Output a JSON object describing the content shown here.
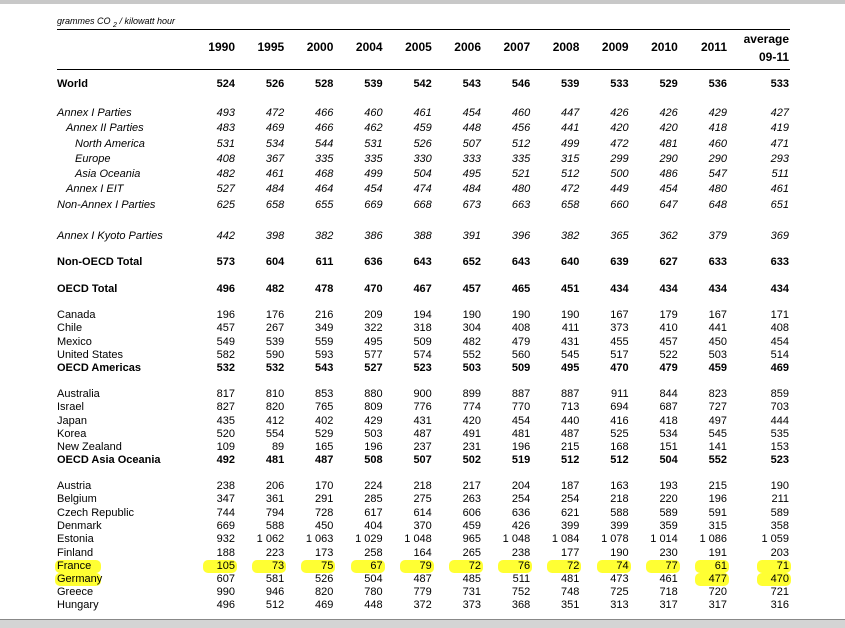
{
  "table": {
    "units": {
      "main": "grammes CO",
      "sub": "2",
      "rest": " / kilowatt hour"
    },
    "columns": [
      "1990",
      "1995",
      "2000",
      "2004",
      "2005",
      "2006",
      "2007",
      "2008",
      "2009",
      "2010",
      "2011",
      {
        "line1": "average",
        "line2": "09-11"
      }
    ],
    "rows": [
      {
        "label": "World",
        "values": [
          524,
          526,
          528,
          539,
          542,
          543,
          546,
          539,
          533,
          529,
          536,
          533
        ]
      },
      {
        "label": "Annex I Parties",
        "values": [
          493,
          472,
          466,
          460,
          461,
          454,
          460,
          447,
          426,
          426,
          429,
          427
        ]
      },
      {
        "label": "Annex II Parties",
        "values": [
          483,
          469,
          466,
          462,
          459,
          448,
          456,
          441,
          420,
          420,
          418,
          419
        ]
      },
      {
        "label": "North America",
        "values": [
          531,
          534,
          544,
          531,
          526,
          507,
          512,
          499,
          472,
          481,
          460,
          471
        ]
      },
      {
        "label": "Europe",
        "values": [
          408,
          367,
          335,
          335,
          330,
          333,
          335,
          315,
          299,
          290,
          290,
          293
        ]
      },
      {
        "label": "Asia Oceania",
        "values": [
          482,
          461,
          468,
          499,
          504,
          495,
          521,
          512,
          500,
          486,
          547,
          511
        ]
      },
      {
        "label": "Annex I EIT",
        "values": [
          527,
          484,
          464,
          454,
          474,
          484,
          480,
          472,
          449,
          454,
          480,
          461
        ]
      },
      {
        "label": "Non-Annex I Parties",
        "values": [
          625,
          658,
          655,
          669,
          668,
          673,
          663,
          658,
          660,
          647,
          648,
          651
        ]
      },
      {
        "label": "Annex I Kyoto Parties",
        "values": [
          442,
          398,
          382,
          386,
          388,
          391,
          396,
          382,
          365,
          362,
          379,
          369
        ]
      },
      {
        "label": "Non-OECD Total",
        "values": [
          573,
          604,
          611,
          636,
          643,
          652,
          643,
          640,
          639,
          627,
          633,
          633
        ]
      },
      {
        "label": "OECD Total",
        "values": [
          496,
          482,
          478,
          470,
          467,
          457,
          465,
          451,
          434,
          434,
          434,
          434
        ]
      },
      {
        "label": "Canada",
        "values": [
          196,
          176,
          216,
          209,
          194,
          190,
          190,
          190,
          167,
          179,
          167,
          171
        ]
      },
      {
        "label": "Chile",
        "values": [
          457,
          267,
          349,
          322,
          318,
          304,
          408,
          411,
          373,
          410,
          441,
          408
        ]
      },
      {
        "label": "Mexico",
        "values": [
          549,
          539,
          559,
          495,
          509,
          482,
          479,
          431,
          455,
          457,
          450,
          454
        ]
      },
      {
        "label": "United States",
        "values": [
          582,
          590,
          593,
          577,
          574,
          552,
          560,
          545,
          517,
          522,
          503,
          514
        ]
      },
      {
        "label": "OECD Americas",
        "values": [
          532,
          532,
          543,
          527,
          523,
          503,
          509,
          495,
          470,
          479,
          459,
          469
        ]
      },
      {
        "label": "Australia",
        "values": [
          817,
          810,
          853,
          880,
          900,
          899,
          887,
          887,
          911,
          844,
          823,
          859
        ]
      },
      {
        "label": "Israel",
        "values": [
          827,
          820,
          765,
          809,
          776,
          774,
          770,
          713,
          694,
          687,
          727,
          703
        ]
      },
      {
        "label": "Japan",
        "values": [
          435,
          412,
          402,
          429,
          431,
          420,
          454,
          440,
          416,
          418,
          497,
          444
        ]
      },
      {
        "label": "Korea",
        "values": [
          520,
          554,
          529,
          503,
          487,
          491,
          481,
          487,
          525,
          534,
          545,
          535
        ]
      },
      {
        "label": "New Zealand",
        "values": [
          109,
          89,
          165,
          196,
          237,
          231,
          196,
          215,
          168,
          151,
          141,
          153
        ]
      },
      {
        "label": "OECD Asia Oceania",
        "values": [
          492,
          481,
          487,
          508,
          507,
          502,
          519,
          512,
          512,
          504,
          552,
          523
        ]
      },
      {
        "label": "Austria",
        "values": [
          238,
          206,
          170,
          224,
          218,
          217,
          204,
          187,
          163,
          193,
          215,
          190
        ]
      },
      {
        "label": "Belgium",
        "values": [
          347,
          361,
          291,
          285,
          275,
          263,
          254,
          254,
          218,
          220,
          196,
          211
        ]
      },
      {
        "label": "Czech Republic",
        "values": [
          744,
          794,
          728,
          617,
          614,
          606,
          636,
          621,
          588,
          589,
          591,
          589
        ]
      },
      {
        "label": "Denmark",
        "values": [
          669,
          588,
          450,
          404,
          370,
          459,
          426,
          399,
          399,
          359,
          315,
          358
        ]
      },
      {
        "label": "Estonia",
        "values": [
          932,
          "1 062",
          "1 063",
          "1 029",
          "1 048",
          965,
          "1 048",
          "1 084",
          "1 078",
          "1 014",
          "1 086",
          "1 059"
        ]
      },
      {
        "label": "Finland",
        "values": [
          188,
          223,
          173,
          258,
          164,
          265,
          238,
          177,
          190,
          230,
          191,
          203
        ]
      },
      {
        "label": "France",
        "values": [
          105,
          73,
          75,
          67,
          79,
          72,
          76,
          72,
          74,
          77,
          61,
          71
        ]
      },
      {
        "label": "Germany",
        "values": [
          607,
          581,
          526,
          504,
          487,
          485,
          511,
          481,
          473,
          461,
          477,
          470
        ]
      },
      {
        "label": "Greece",
        "values": [
          990,
          946,
          820,
          780,
          779,
          731,
          752,
          748,
          725,
          718,
          720,
          721
        ]
      },
      {
        "label": "Hungary",
        "values": [
          496,
          512,
          469,
          448,
          372,
          373,
          368,
          351,
          313,
          317,
          317,
          316
        ]
      }
    ]
  }
}
